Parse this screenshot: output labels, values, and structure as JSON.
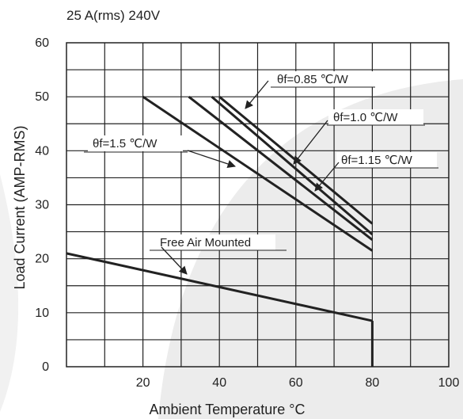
{
  "chart_data": {
    "type": "line",
    "title": "25 A(rms) 240V",
    "xlabel": "Ambient Temperature °C",
    "ylabel": "Load Current (AMP-RMS)",
    "xlim": [
      0,
      100
    ],
    "ylim": [
      0,
      60
    ],
    "x_tick_labels": [
      "20",
      "40",
      "60",
      "80",
      "100"
    ],
    "x_ticks": [
      20,
      40,
      60,
      80,
      100
    ],
    "y_tick_labels": [
      "0",
      "10",
      "20",
      "30",
      "40",
      "50",
      "60"
    ],
    "y_ticks": [
      0,
      10,
      20,
      30,
      40,
      50,
      60
    ],
    "grid": true,
    "series": [
      {
        "name": "θf=1.5 ℃/W",
        "x": [
          20,
          80
        ],
        "y": [
          50,
          21.5
        ]
      },
      {
        "name": "θf=1.15 ℃/W",
        "x": [
          32,
          80
        ],
        "y": [
          50,
          23.5
        ]
      },
      {
        "name": "θf=1.0 ℃/W",
        "x": [
          38,
          80
        ],
        "y": [
          50,
          24.5
        ]
      },
      {
        "name": "θf=0.85 ℃/W",
        "x": [
          40,
          80
        ],
        "y": [
          50,
          26.5
        ]
      },
      {
        "name": "Free Air Mounted",
        "x": [
          0,
          80
        ],
        "y": [
          21,
          8.5
        ]
      }
    ],
    "annotations": [
      {
        "text": "θf=0.85 ℃/W",
        "series": 3
      },
      {
        "text": "θf=1.0 ℃/W",
        "series": 2
      },
      {
        "text": "θf=1.5 ℃/W",
        "series": 0
      },
      {
        "text": "θf=1.15 ℃/W",
        "series": 1
      },
      {
        "text": "Free Air Mounted",
        "series": 4
      }
    ]
  }
}
